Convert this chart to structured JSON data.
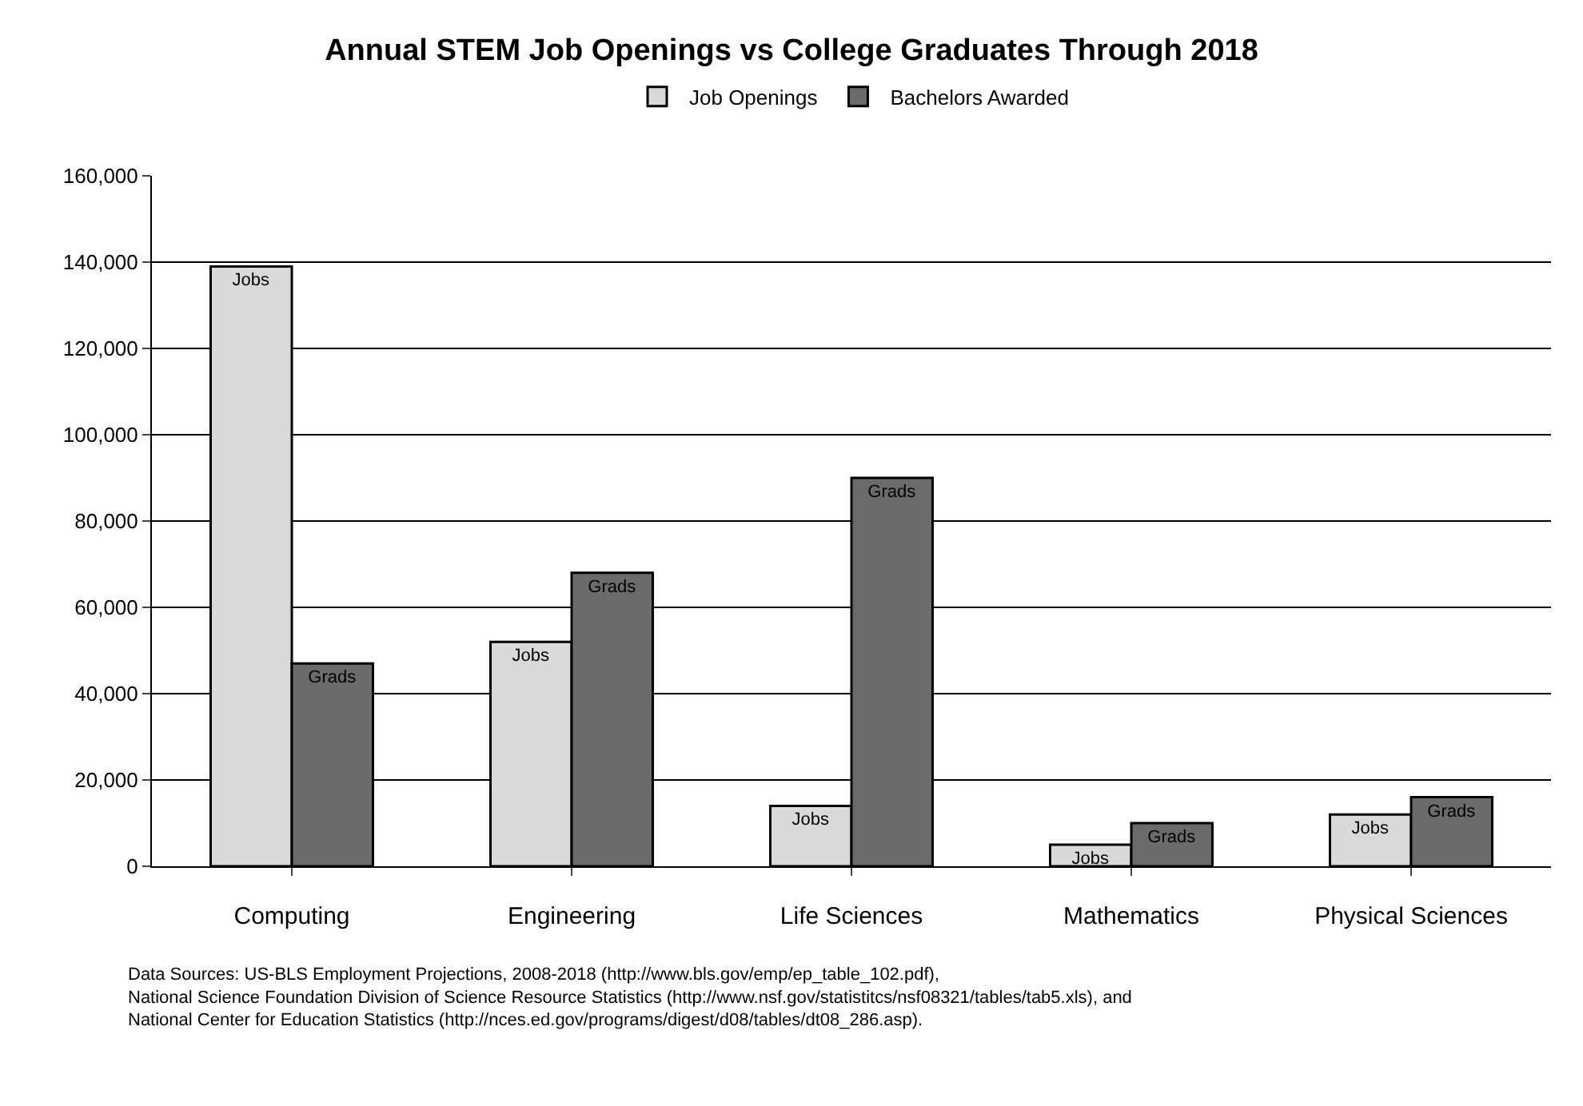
{
  "chart_data": {
    "type": "bar",
    "title": "Annual STEM Job Openings vs College Graduates Through 2018",
    "categories": [
      "Computing",
      "Engineering",
      "Life Sciences",
      "Mathematics",
      "Physical Sciences"
    ],
    "series": [
      {
        "name": "Job Openings",
        "color": "#d9d9d9",
        "values": [
          139000,
          52000,
          14000,
          5000,
          12000
        ],
        "value_labels": [
          "Jobs",
          "Jobs",
          "Jobs",
          "Jobs",
          "Jobs"
        ]
      },
      {
        "name": "Bachelors Awarded",
        "color": "#6b6b6b",
        "values": [
          47000,
          68000,
          90000,
          10000,
          16000
        ],
        "value_labels": [
          "Grads",
          "Grads",
          "Grads",
          "Grads",
          "Grads"
        ]
      }
    ],
    "ylim": [
      0,
      160000
    ],
    "yticks": [
      {
        "value": 0,
        "label": "0"
      },
      {
        "value": 20000,
        "label": "20,000"
      },
      {
        "value": 40000,
        "label": "40,000"
      },
      {
        "value": 60000,
        "label": "60,000"
      },
      {
        "value": 80000,
        "label": "80,000"
      },
      {
        "value": 100000,
        "label": "100,000"
      },
      {
        "value": 120000,
        "label": "120,000"
      },
      {
        "value": 140000,
        "label": "140,000"
      },
      {
        "value": 160000,
        "label": "160,000"
      }
    ],
    "grid": "y",
    "legend": "top",
    "annotations": [
      "Data Sources: US-BLS Employment Projections, 2008-2018 (http://www.bls.gov/emp/ep_table_102.pdf),\nNational Science Foundation Division of Science Resource Statistics (http://www.nsf.gov/statistitcs/nsf08321/tables/tab5.xls), and\nNational Center for Education Statistics (http://nces.ed.gov/programs/digest/d08/tables/dt08_286.asp)."
    ]
  }
}
